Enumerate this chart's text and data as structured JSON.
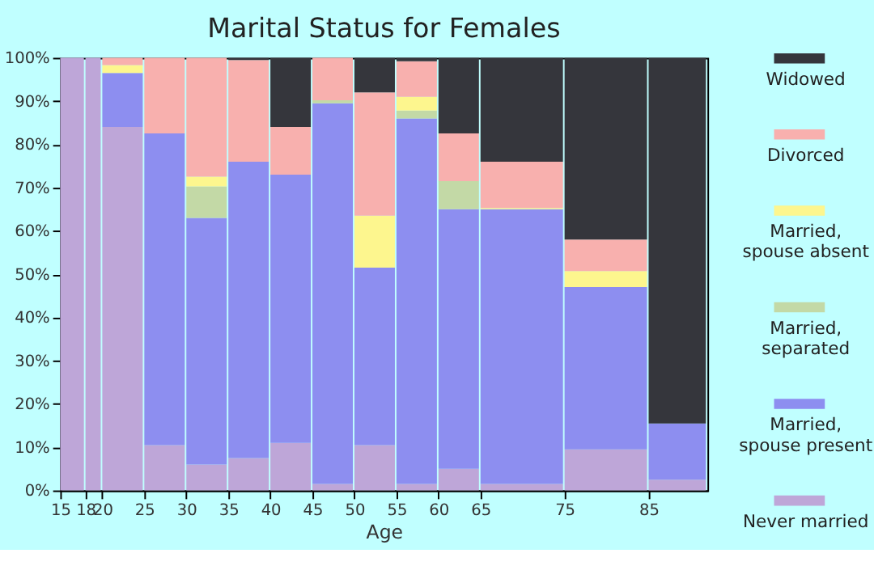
{
  "chart_data": {
    "type": "bar",
    "stacked": true,
    "title": "Marital Status for Females",
    "xlabel": "Age",
    "x": [
      16.5,
      19,
      22.5,
      27.5,
      32.5,
      37.5,
      42.5,
      47.5,
      52.5,
      57.5,
      62.5,
      70,
      80,
      88.5
    ],
    "xlim": [
      15,
      92
    ],
    "xticks": [
      15,
      18,
      20,
      25,
      30,
      35,
      40,
      45,
      50,
      55,
      60,
      65,
      75,
      85
    ],
    "ylim": [
      0,
      100
    ],
    "yticks": [
      {
        "value": 0,
        "label": "0%"
      },
      {
        "value": 10,
        "label": "10%"
      },
      {
        "value": 20,
        "label": "20%"
      },
      {
        "value": 30,
        "label": "30%"
      },
      {
        "value": 40,
        "label": "40%"
      },
      {
        "value": 50,
        "label": "50%"
      },
      {
        "value": 60,
        "label": "60%"
      },
      {
        "value": 70,
        "label": "70%"
      },
      {
        "value": 80,
        "label": "80%"
      },
      {
        "value": 90,
        "label": "90%"
      },
      {
        "value": 100,
        "label": "100%"
      }
    ],
    "grid": false,
    "legend": "right",
    "series": [
      {
        "name": "Never married",
        "color": "#bea6d8",
        "values": [
          100,
          100,
          84,
          10.5,
          6,
          7.5,
          11,
          1.5,
          10.5,
          1.5,
          5,
          1.5,
          9.5,
          2.5
        ]
      },
      {
        "name": "Married, spouse present",
        "color": "#8d8ef0",
        "values": [
          0,
          0,
          12.5,
          72,
          57,
          68.5,
          62,
          88,
          41,
          84.5,
          60,
          63.5,
          37.5,
          13
        ]
      },
      {
        "name": "Married, separated",
        "color": "#c3d9a6",
        "values": [
          0,
          0,
          0,
          0,
          7.3,
          0,
          0,
          0.7,
          0,
          1.8,
          6.5,
          0,
          0,
          0
        ]
      },
      {
        "name": "Married, spouse absent",
        "color": "#fdf68e",
        "values": [
          0,
          0,
          1.8,
          0,
          2.2,
          0,
          0,
          0,
          12,
          3.2,
          0,
          0.3,
          3.7,
          0
        ]
      },
      {
        "name": "Divorced",
        "color": "#f8b0ae",
        "values": [
          0,
          0,
          1.7,
          17.5,
          27.5,
          23.5,
          11,
          9.8,
          28.5,
          8.2,
          11,
          10.7,
          7.3,
          0
        ]
      },
      {
        "name": "Widowed",
        "color": "#35363c",
        "values": [
          0,
          0,
          0,
          0,
          0,
          0.5,
          16,
          0,
          8,
          0.8,
          17.5,
          24,
          42,
          84.5
        ]
      }
    ]
  }
}
